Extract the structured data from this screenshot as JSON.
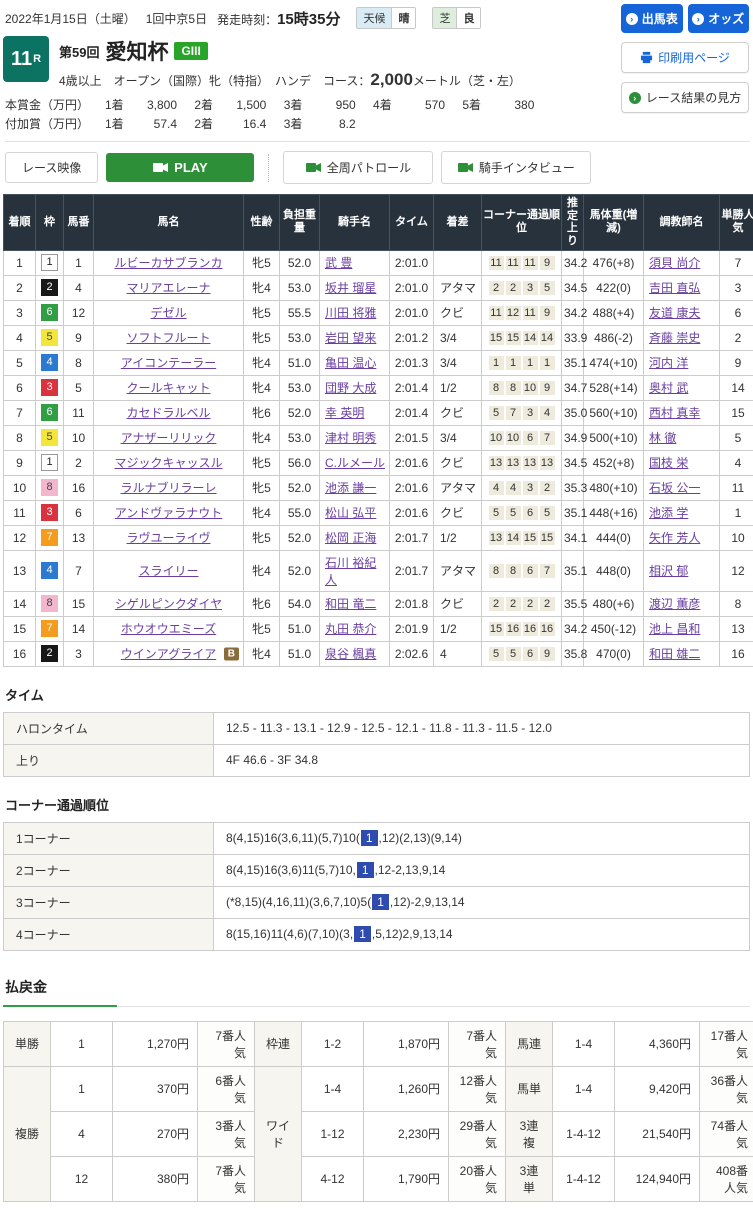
{
  "header": {
    "date": "2022年1月15日（土曜）",
    "meeting": "1回中京5日",
    "start_label": "発走時刻：",
    "start_time": "15時35分",
    "weather_label": "天候",
    "weather_value": "晴",
    "turf_label": "芝",
    "turf_value": "良"
  },
  "right_buttons": {
    "shutuba": "出馬表",
    "odds": "オッズ",
    "print": "印刷用ページ",
    "guide": "レース結果の見方"
  },
  "icons": {
    "arrow": "›"
  },
  "race": {
    "number": "11",
    "number_suffix": "R",
    "round": "第59回",
    "name": "愛知杯",
    "grade": "GIII",
    "conditions_pre": "4歳以上　オープン（国際）牝（特指）　ハンデ　コース：",
    "distance": "2,000",
    "conditions_post": "メートル（芝・左）"
  },
  "prize": {
    "main_label": "本賞金（万円）",
    "main_items": [
      {
        "place": "1着",
        "amount": "3,800"
      },
      {
        "place": "2着",
        "amount": "1,500"
      },
      {
        "place": "3着",
        "amount": "950"
      },
      {
        "place": "4着",
        "amount": "570"
      },
      {
        "place": "5着",
        "amount": "380"
      }
    ],
    "added_label": "付加賞（万円）",
    "added_items": [
      {
        "place": "1着",
        "amount": "57.4"
      },
      {
        "place": "2着",
        "amount": "16.4"
      },
      {
        "place": "3着",
        "amount": "8.2"
      }
    ]
  },
  "media": {
    "race_video": "レース映像",
    "play": "PLAY",
    "patrol": "全周パトロール",
    "interview": "騎手インタビュー"
  },
  "results": {
    "headers": [
      "着順",
      "枠",
      "馬番",
      "馬名",
      "性齢",
      "負担重量",
      "騎手名",
      "タイム",
      "着差",
      "コーナー通過順位",
      "推定上り",
      "馬体重(増減)",
      "調教師名",
      "単勝人気"
    ],
    "rows": [
      {
        "pos": "1",
        "frame": "1",
        "num": "1",
        "name": "ルビーカサブランカ",
        "blinker": "",
        "sexage": "牝5",
        "weight": "52.0",
        "jockey": "武 豊",
        "time": "2:01.0",
        "margin": "",
        "corners": [
          "11",
          "11",
          "11",
          "9"
        ],
        "agari": "34.2",
        "hweight": "476(+8)",
        "trainer": "須貝 尚介",
        "pop": "7"
      },
      {
        "pos": "2",
        "frame": "2",
        "num": "4",
        "name": "マリアエレーナ",
        "blinker": "",
        "sexage": "牝4",
        "weight": "53.0",
        "jockey": "坂井 瑠星",
        "time": "2:01.0",
        "margin": "アタマ",
        "corners": [
          "2",
          "2",
          "3",
          "5"
        ],
        "agari": "34.5",
        "hweight": "422(0)",
        "trainer": "吉田 直弘",
        "pop": "3"
      },
      {
        "pos": "3",
        "frame": "6",
        "num": "12",
        "name": "デゼル",
        "blinker": "",
        "sexage": "牝5",
        "weight": "55.5",
        "jockey": "川田 将雅",
        "time": "2:01.0",
        "margin": "クビ",
        "corners": [
          "11",
          "12",
          "11",
          "9"
        ],
        "agari": "34.2",
        "hweight": "488(+4)",
        "trainer": "友道 康夫",
        "pop": "6"
      },
      {
        "pos": "4",
        "frame": "5",
        "num": "9",
        "name": "ソフトフルート",
        "blinker": "",
        "sexage": "牝5",
        "weight": "53.0",
        "jockey": "岩田 望来",
        "time": "2:01.2",
        "margin": "3/4",
        "corners": [
          "15",
          "15",
          "14",
          "14"
        ],
        "agari": "33.9",
        "hweight": "486(-2)",
        "trainer": "斉藤 崇史",
        "pop": "2"
      },
      {
        "pos": "5",
        "frame": "4",
        "num": "8",
        "name": "アイコンテーラー",
        "blinker": "",
        "sexage": "牝4",
        "weight": "51.0",
        "jockey": "亀田 温心",
        "time": "2:01.3",
        "margin": "3/4",
        "corners": [
          "1",
          "1",
          "1",
          "1"
        ],
        "agari": "35.1",
        "hweight": "474(+10)",
        "trainer": "河内 洋",
        "pop": "9"
      },
      {
        "pos": "6",
        "frame": "3",
        "num": "5",
        "name": "クールキャット",
        "blinker": "",
        "sexage": "牝4",
        "weight": "53.0",
        "jockey": "団野 大成",
        "time": "2:01.4",
        "margin": "1/2",
        "corners": [
          "8",
          "8",
          "10",
          "9"
        ],
        "agari": "34.7",
        "hweight": "528(+14)",
        "trainer": "奥村 武",
        "pop": "14"
      },
      {
        "pos": "7",
        "frame": "6",
        "num": "11",
        "name": "カセドラルベル",
        "blinker": "",
        "sexage": "牝6",
        "weight": "52.0",
        "jockey": "幸 英明",
        "time": "2:01.4",
        "margin": "クビ",
        "corners": [
          "5",
          "7",
          "3",
          "4"
        ],
        "agari": "35.0",
        "hweight": "560(+10)",
        "trainer": "西村 真幸",
        "pop": "15"
      },
      {
        "pos": "8",
        "frame": "5",
        "num": "10",
        "name": "アナザーリリック",
        "blinker": "",
        "sexage": "牝4",
        "weight": "53.0",
        "jockey": "津村 明秀",
        "time": "2:01.5",
        "margin": "3/4",
        "corners": [
          "10",
          "10",
          "6",
          "7"
        ],
        "agari": "34.9",
        "hweight": "500(+10)",
        "trainer": "林 徹",
        "pop": "5"
      },
      {
        "pos": "9",
        "frame": "1",
        "num": "2",
        "name": "マジックキャッスル",
        "blinker": "",
        "sexage": "牝5",
        "weight": "56.0",
        "jockey": "C.ルメール",
        "time": "2:01.6",
        "margin": "クビ",
        "corners": [
          "13",
          "13",
          "13",
          "13"
        ],
        "agari": "34.5",
        "hweight": "452(+8)",
        "trainer": "国枝 栄",
        "pop": "4"
      },
      {
        "pos": "10",
        "frame": "8",
        "num": "16",
        "name": "ラルナブリラーレ",
        "blinker": "",
        "sexage": "牝5",
        "weight": "52.0",
        "jockey": "池添 謙一",
        "time": "2:01.6",
        "margin": "アタマ",
        "corners": [
          "4",
          "4",
          "3",
          "2"
        ],
        "agari": "35.3",
        "hweight": "480(+10)",
        "trainer": "石坂 公一",
        "pop": "11"
      },
      {
        "pos": "11",
        "frame": "3",
        "num": "6",
        "name": "アンドヴァラナウト",
        "blinker": "",
        "sexage": "牝4",
        "weight": "55.0",
        "jockey": "松山 弘平",
        "time": "2:01.6",
        "margin": "クビ",
        "corners": [
          "5",
          "5",
          "6",
          "5"
        ],
        "agari": "35.1",
        "hweight": "448(+16)",
        "trainer": "池添 学",
        "pop": "1"
      },
      {
        "pos": "12",
        "frame": "7",
        "num": "13",
        "name": "ラヴユーライヴ",
        "blinker": "",
        "sexage": "牝5",
        "weight": "52.0",
        "jockey": "松岡 正海",
        "time": "2:01.7",
        "margin": "1/2",
        "corners": [
          "13",
          "14",
          "15",
          "15"
        ],
        "agari": "34.1",
        "hweight": "444(0)",
        "trainer": "矢作 芳人",
        "pop": "10"
      },
      {
        "pos": "13",
        "frame": "4",
        "num": "7",
        "name": "スライリー",
        "blinker": "",
        "sexage": "牝4",
        "weight": "52.0",
        "jockey": "石川 裕紀人",
        "time": "2:01.7",
        "margin": "アタマ",
        "corners": [
          "8",
          "8",
          "6",
          "7"
        ],
        "agari": "35.1",
        "hweight": "448(0)",
        "trainer": "相沢 郁",
        "pop": "12"
      },
      {
        "pos": "14",
        "frame": "8",
        "num": "15",
        "name": "シゲルピンクダイヤ",
        "blinker": "",
        "sexage": "牝6",
        "weight": "54.0",
        "jockey": "和田 竜二",
        "time": "2:01.8",
        "margin": "クビ",
        "corners": [
          "2",
          "2",
          "2",
          "2"
        ],
        "agari": "35.5",
        "hweight": "480(+6)",
        "trainer": "渡辺 薫彦",
        "pop": "8"
      },
      {
        "pos": "15",
        "frame": "7",
        "num": "14",
        "name": "ホウオウエミーズ",
        "blinker": "",
        "sexage": "牝5",
        "weight": "51.0",
        "jockey": "丸田 恭介",
        "time": "2:01.9",
        "margin": "1/2",
        "corners": [
          "15",
          "16",
          "16",
          "16"
        ],
        "agari": "34.2",
        "hweight": "450(-12)",
        "trainer": "池上 昌和",
        "pop": "13"
      },
      {
        "pos": "16",
        "frame": "2",
        "num": "3",
        "name": "ウインアグライア",
        "blinker": "B",
        "sexage": "牝4",
        "weight": "51.0",
        "jockey": "泉谷 楓真",
        "time": "2:02.6",
        "margin": "4",
        "corners": [
          "5",
          "5",
          "6",
          "9"
        ],
        "agari": "35.8",
        "hweight": "470(0)",
        "trainer": "和田 雄二",
        "pop": "16"
      }
    ]
  },
  "time_section": {
    "title": "タイム",
    "rows": [
      {
        "label": "ハロンタイム",
        "value": "12.5 - 11.3 - 13.1 - 12.9 - 12.5 - 12.1 - 11.8 - 11.3 - 11.5 - 12.0"
      },
      {
        "label": "上り",
        "value": "4F 46.6 - 3F 34.8"
      }
    ]
  },
  "corner_section": {
    "title": "コーナー通過順位",
    "rows": [
      {
        "label": "1コーナー",
        "pre": "8(4,15)16(3,6,11)(5,7)10(",
        "mark": "1",
        "post": ",12)(2,13)(9,14)"
      },
      {
        "label": "2コーナー",
        "pre": "8(4,15)16(3,6)11(5,7)10,",
        "mark": "1",
        "post": ",12-2,13,9,14"
      },
      {
        "label": "3コーナー",
        "pre": "(*8,15)(4,16,11)(3,6,7,10)5(",
        "mark": "1",
        "post": ",12)-2,9,13,14"
      },
      {
        "label": "4コーナー",
        "pre": "8(15,16)11(4,6)(7,10)(3,",
        "mark": "1",
        "post": ",5,12)2,9,13,14"
      }
    ]
  },
  "payout": {
    "title": "払戻金",
    "tansho": {
      "label": "単勝",
      "combo": "1",
      "amount": "1,270円",
      "pop": "7番人気"
    },
    "fukusho": {
      "label": "複勝",
      "rows": [
        {
          "combo": "1",
          "amount": "370円",
          "pop": "6番人気"
        },
        {
          "combo": "4",
          "amount": "270円",
          "pop": "3番人気"
        },
        {
          "combo": "12",
          "amount": "380円",
          "pop": "7番人気"
        }
      ]
    },
    "wakuren": {
      "label": "枠連",
      "combo": "1-2",
      "amount": "1,870円",
      "pop": "7番人気"
    },
    "wide": {
      "label": "ワイド",
      "rows": [
        {
          "combo": "1-4",
          "amount": "1,260円",
          "pop": "12番人気"
        },
        {
          "combo": "1-12",
          "amount": "2,230円",
          "pop": "29番人気"
        },
        {
          "combo": "4-12",
          "amount": "1,790円",
          "pop": "20番人気"
        }
      ]
    },
    "umaren": {
      "label": "馬連",
      "combo": "1-4",
      "amount": "4,360円",
      "pop": "17番人気"
    },
    "umatan": {
      "label": "馬単",
      "combo": "1-4",
      "amount": "9,420円",
      "pop": "36番人気"
    },
    "sanrenpuku": {
      "label": "3連複",
      "combo": "1-4-12",
      "amount": "21,540円",
      "pop": "74番人気"
    },
    "sanrentan": {
      "label": "3連単",
      "combo": "1-4-12",
      "amount": "124,940円",
      "pop": "408番人気"
    }
  }
}
